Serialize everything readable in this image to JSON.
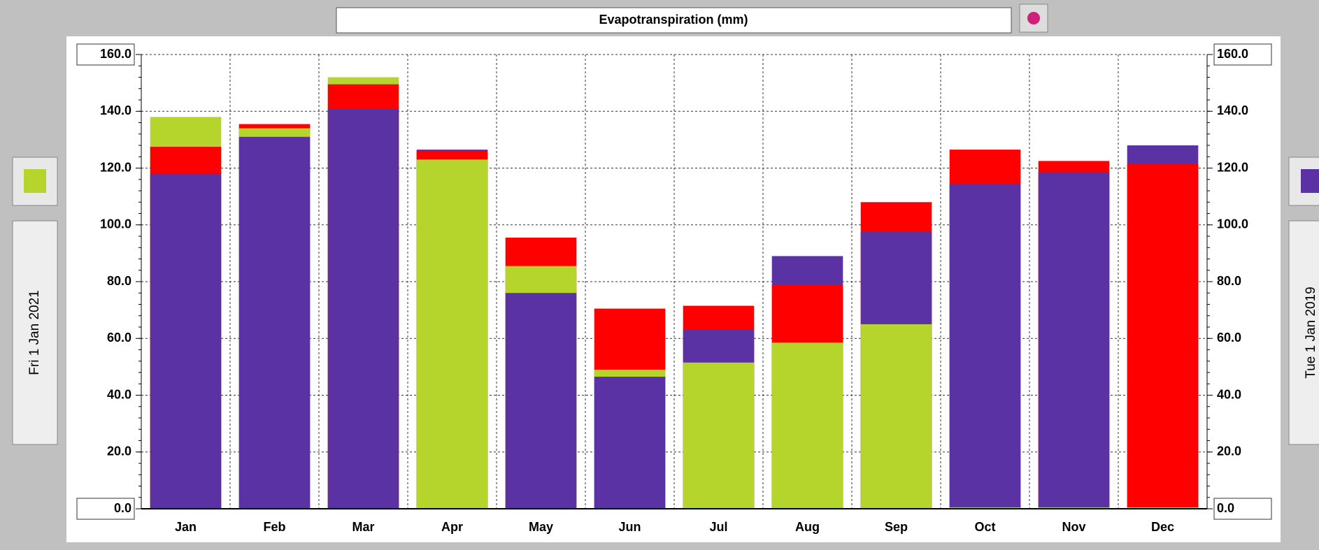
{
  "chart_data": {
    "type": "overlaid_bar",
    "title": "Evapotranspiration (mm)",
    "left_label": "Fri 1 Jan 2021",
    "right_label": "Tue 1 Jan 2019",
    "categories": [
      "Jan",
      "Feb",
      "Mar",
      "Apr",
      "May",
      "Jun",
      "Jul",
      "Aug",
      "Sep",
      "Oct",
      "Nov",
      "Dec"
    ],
    "series": [
      {
        "color": "#5a32a4",
        "values": [
          118,
          131,
          141,
          126.5,
          76,
          46.5,
          63,
          89,
          97.5,
          114.5,
          118.5,
          128
        ]
      },
      {
        "color": "#ff0000",
        "values": [
          127.5,
          135.5,
          149.5,
          126,
          95.5,
          70.5,
          71.5,
          79,
          108,
          126.5,
          122.5,
          121.5
        ]
      },
      {
        "color": "#b5d42c",
        "values": [
          138,
          134,
          152,
          123,
          85.5,
          49,
          51.5,
          58.5,
          65,
          0.5,
          0.5,
          0.5
        ]
      }
    ],
    "ylim": [
      0,
      160
    ],
    "yticks": [
      {
        "value": 0,
        "label": "0.0"
      },
      {
        "value": 20,
        "label": "20.0"
      },
      {
        "value": 40,
        "label": "40.0"
      },
      {
        "value": 60,
        "label": "60.0"
      },
      {
        "value": 80,
        "label": "80.0"
      },
      {
        "value": 100,
        "label": "100.0"
      },
      {
        "value": 120,
        "label": "120.0"
      },
      {
        "value": 140,
        "label": "140.0"
      },
      {
        "value": 160,
        "label": "160.0"
      }
    ],
    "y2lim": [
      0,
      160
    ],
    "y2ticks": [
      {
        "value": 0,
        "label": "0.0"
      },
      {
        "value": 20,
        "label": "20.0"
      },
      {
        "value": 40,
        "label": "40.0"
      },
      {
        "value": 60,
        "label": "60.0"
      },
      {
        "value": 80,
        "label": "80.0"
      },
      {
        "value": 100,
        "label": "100.0"
      },
      {
        "value": 120,
        "label": "120.0"
      },
      {
        "value": 140,
        "label": "140.0"
      },
      {
        "value": 160,
        "label": "160.0"
      }
    ],
    "grid": true
  }
}
